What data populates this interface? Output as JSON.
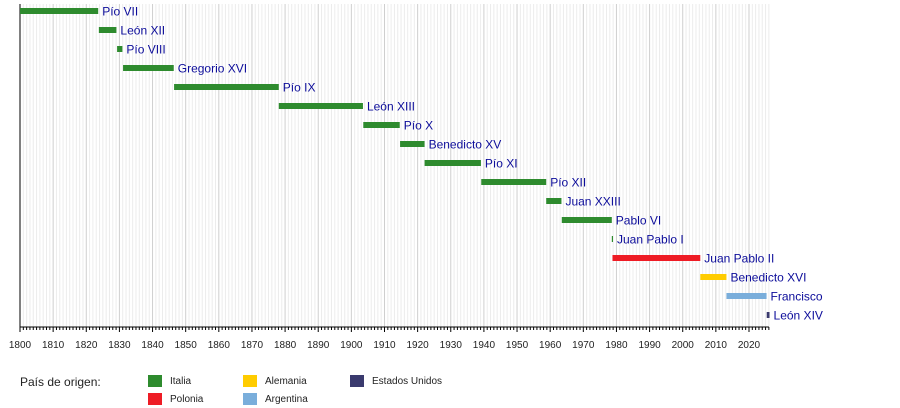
{
  "chart_data": {
    "type": "timeline",
    "xlim": [
      1800,
      2026
    ],
    "xticks": [
      1800,
      1810,
      1820,
      1830,
      1840,
      1850,
      1860,
      1870,
      1880,
      1890,
      1900,
      1910,
      1920,
      1930,
      1940,
      1950,
      1960,
      1970,
      1980,
      1990,
      2000,
      2010,
      2020
    ],
    "grid": true,
    "legend_title": "País de origen:",
    "countries": [
      {
        "name": "Italia",
        "color": "#2e8b2e"
      },
      {
        "name": "Polonia",
        "color": "#ee1c25"
      },
      {
        "name": "Alemania",
        "color": "#ffcc00"
      },
      {
        "name": "Argentina",
        "color": "#7aaedb"
      },
      {
        "name": "Estados Unidos",
        "color": "#3a3a6e"
      }
    ],
    "popes": [
      {
        "name": "Pío VII",
        "start": 1800,
        "end": 1823.6,
        "country": "Italia"
      },
      {
        "name": "León XII",
        "start": 1823.8,
        "end": 1829.1,
        "country": "Italia"
      },
      {
        "name": "Pío VIII",
        "start": 1829.3,
        "end": 1830.9,
        "country": "Italia"
      },
      {
        "name": "Gregorio XVI",
        "start": 1831.1,
        "end": 1846.4,
        "country": "Italia"
      },
      {
        "name": "Pío IX",
        "start": 1846.5,
        "end": 1878.1,
        "country": "Italia"
      },
      {
        "name": "León XIII",
        "start": 1878.1,
        "end": 1903.5,
        "country": "Italia"
      },
      {
        "name": "Pío X",
        "start": 1903.6,
        "end": 1914.6,
        "country": "Italia"
      },
      {
        "name": "Benedicto XV",
        "start": 1914.7,
        "end": 1922.1,
        "country": "Italia"
      },
      {
        "name": "Pío XI",
        "start": 1922.1,
        "end": 1939.1,
        "country": "Italia"
      },
      {
        "name": "Pío XII",
        "start": 1939.2,
        "end": 1958.8,
        "country": "Italia"
      },
      {
        "name": "Juan XXIII",
        "start": 1958.8,
        "end": 1963.4,
        "country": "Italia"
      },
      {
        "name": "Pablo VI",
        "start": 1963.5,
        "end": 1978.6,
        "country": "Italia"
      },
      {
        "name": "Juan Pablo I",
        "start": 1978.6,
        "end": 1978.75,
        "country": "Italia"
      },
      {
        "name": "Juan Pablo II",
        "start": 1978.8,
        "end": 2005.3,
        "country": "Polonia"
      },
      {
        "name": "Benedicto XVI",
        "start": 2005.3,
        "end": 2013.2,
        "country": "Alemania"
      },
      {
        "name": "Francisco",
        "start": 2013.2,
        "end": 2025.3,
        "country": "Argentina"
      },
      {
        "name": "León XIV",
        "start": 2025.35,
        "end": 2026.2,
        "country": "Estados Unidos"
      }
    ]
  }
}
